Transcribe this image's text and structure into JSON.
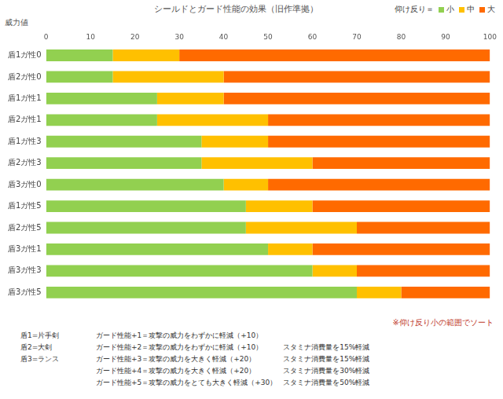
{
  "chart_data": {
    "type": "bar",
    "orientation": "horizontal",
    "stacked": true,
    "title": "シールドとガード性能の効果（旧作準拠）",
    "xlabel": "威力値",
    "legend_title": "仰け反り＝",
    "legend": "top-right",
    "grid": false,
    "categories": [
      "盾1ガ性0",
      "盾2ガ性0",
      "盾1ガ性1",
      "盾2ガ性1",
      "盾1ガ性3",
      "盾2ガ性3",
      "盾3ガ性0",
      "盾1ガ性5",
      "盾2ガ性5",
      "盾3ガ性1",
      "盾3ガ性3",
      "盾3ガ性5"
    ],
    "series": [
      {
        "name": "小",
        "color": "#92d050",
        "values": [
          15,
          15,
          25,
          25,
          35,
          35,
          40,
          45,
          45,
          50,
          60,
          70
        ]
      },
      {
        "name": "中",
        "color": "#ffc000",
        "values": [
          15,
          25,
          15,
          25,
          15,
          25,
          10,
          15,
          25,
          10,
          10,
          10
        ]
      },
      {
        "name": "大",
        "color": "#ff6a00",
        "values": [
          70,
          60,
          60,
          50,
          50,
          40,
          50,
          40,
          30,
          40,
          30,
          20
        ]
      }
    ],
    "xlim": [
      0,
      100
    ],
    "xticks": [
      0,
      10,
      20,
      30,
      40,
      50,
      60,
      70,
      80,
      90,
      100
    ],
    "annotations": {
      "note": "※仰け反り小の範囲でソート",
      "rows": [
        [
          "盾1=片手剣",
          "ガード性能+1＝攻撃の威力をわずかに軽減（+10）",
          null
        ],
        [
          "盾2=大剣",
          "ガード性能+2＝攻撃の威力をわずかに軽減（+10）",
          "スタミナ消費量を15%軽減"
        ],
        [
          "盾3=ランス",
          "ガード性能+3＝攻撃の威力を大きく軽減（+20）",
          "スタミナ消費量を15%軽減"
        ],
        [
          null,
          "ガード性能+4＝攻撃の威力を大きく軽減（+20）",
          "スタミナ消費量を30%軽減"
        ],
        [
          null,
          "ガード性能+5＝攻撃の威力をとても大きく軽減（+30）",
          "スタミナ消費量を50%軽減"
        ]
      ]
    }
  }
}
